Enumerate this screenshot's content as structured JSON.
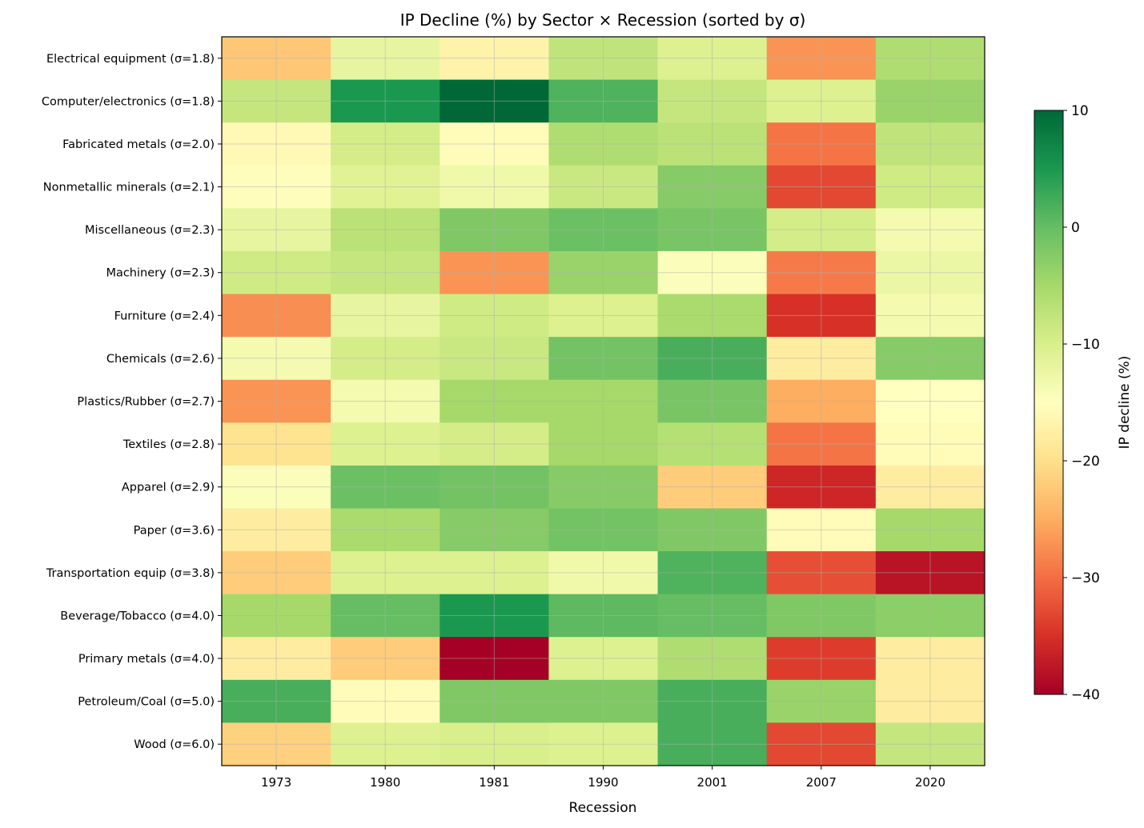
{
  "chart_data": {
    "type": "heatmap",
    "title": "IP Decline (%) by Sector × Recession (sorted by σ)",
    "xlabel": "Recession",
    "ylabel": "",
    "colorbar_label": "IP decline (%)",
    "colormap": "RdYlGn",
    "vmin": -40,
    "vmax": 10,
    "colorbar_ticks": [
      10,
      0,
      -10,
      -20,
      -30,
      -40
    ],
    "colorbar_tick_labels": [
      "10",
      "0",
      "−10",
      "−20",
      "−30",
      "−40"
    ],
    "grid": true,
    "x_categories": [
      "1973",
      "1980",
      "1981",
      "1990",
      "2001",
      "2007",
      "2020"
    ],
    "y_categories": [
      "Electrical equipment (σ=1.8)",
      "Computer/electronics (σ=1.8)",
      "Fabricated metals (σ=2.0)",
      "Nonmetallic minerals (σ=2.1)",
      "Miscellaneous (σ=2.3)",
      "Machinery (σ=2.3)",
      "Furniture (σ=2.4)",
      "Chemicals (σ=2.6)",
      "Plastics/Rubber (σ=2.7)",
      "Textiles (σ=2.8)",
      "Apparel (σ=2.9)",
      "Paper (σ=3.6)",
      "Transportation equip (σ=3.8)",
      "Beverage/Tobacco (σ=4.0)",
      "Primary metals (σ=4.0)",
      "Petroleum/Coal (σ=5.0)",
      "Wood (σ=6.0)"
    ],
    "values": [
      [
        -22.5,
        -12,
        -17,
        -7.5,
        -10.5,
        -27,
        -6
      ],
      [
        -8,
        5,
        10,
        1.5,
        -8,
        -10.5,
        -4
      ],
      [
        -16,
        -9.5,
        -15.5,
        -6,
        -7,
        -29.5,
        -7.5
      ],
      [
        -15.3,
        -11,
        -13,
        -8.5,
        -2.5,
        -33,
        -9
      ],
      [
        -12,
        -7,
        -2,
        -0.5,
        -1.5,
        -9.5,
        -13.5
      ],
      [
        -9,
        -8,
        -27,
        -4,
        -14.5,
        -29,
        -12.5
      ],
      [
        -27.5,
        -12,
        -9,
        -10.5,
        -5.5,
        -35,
        -13.5
      ],
      [
        -13.5,
        -9.5,
        -8.5,
        -1,
        2,
        -18,
        -2.5
      ],
      [
        -27,
        -13.5,
        -5,
        -5,
        -1.5,
        -25,
        -15
      ],
      [
        -19.5,
        -10.5,
        -9.5,
        -5,
        -6.5,
        -29.5,
        -15.5
      ],
      [
        -14.5,
        -0.5,
        -1,
        -2.5,
        -22,
        -36,
        -18
      ],
      [
        -18,
        -5.5,
        -2.5,
        -1,
        -2,
        -15.5,
        -5
      ],
      [
        -22,
        -10.5,
        -10.5,
        -13,
        1.5,
        -32.5,
        -38
      ],
      [
        -5,
        0,
        5,
        0.5,
        0,
        -2,
        -3
      ],
      [
        -18,
        -22,
        -40,
        -10.5,
        -6,
        -34,
        -18
      ],
      [
        2,
        -15.5,
        -2,
        -2,
        2,
        -4,
        -18
      ],
      [
        -21.5,
        -10.5,
        -10,
        -10.5,
        2,
        -33,
        -8
      ]
    ]
  }
}
